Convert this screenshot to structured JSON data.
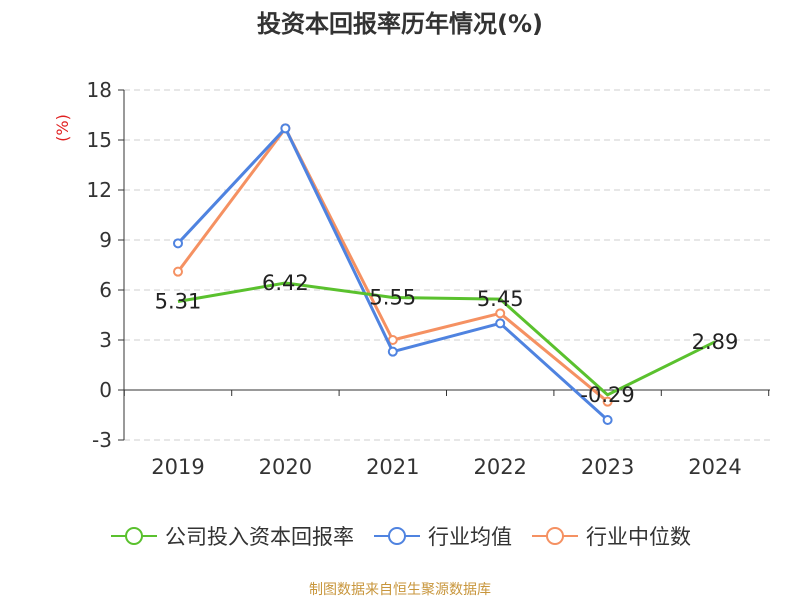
{
  "chart_data": {
    "type": "line",
    "title": "投资本回报率历年情况(%)",
    "ylabel": "(%)",
    "categories": [
      "2019",
      "2020",
      "2021",
      "2022",
      "2023",
      "2024"
    ],
    "ylim": [
      -3,
      18
    ],
    "yticks": [
      -3,
      0,
      3,
      6,
      9,
      12,
      15,
      18
    ],
    "grid": true,
    "legend_position": "bottom",
    "series": [
      {
        "name": "公司投入资本回报率",
        "color": "#5ac12e",
        "values": [
          5.31,
          6.42,
          5.55,
          5.45,
          -0.29,
          2.89
        ],
        "labels": [
          "5.31",
          "6.42",
          "5.55",
          "5.45",
          "-0.29",
          "2.89"
        ]
      },
      {
        "name": "行业均值",
        "color": "#4f83e0",
        "values": [
          8.8,
          15.7,
          2.3,
          4.0,
          -1.8,
          null
        ]
      },
      {
        "name": "行业中位数",
        "color": "#f59162",
        "values": [
          7.1,
          15.7,
          3.0,
          4.6,
          -0.7,
          null
        ]
      }
    ]
  },
  "footer": {
    "source": "制图数据来自恒生聚源数据库"
  }
}
